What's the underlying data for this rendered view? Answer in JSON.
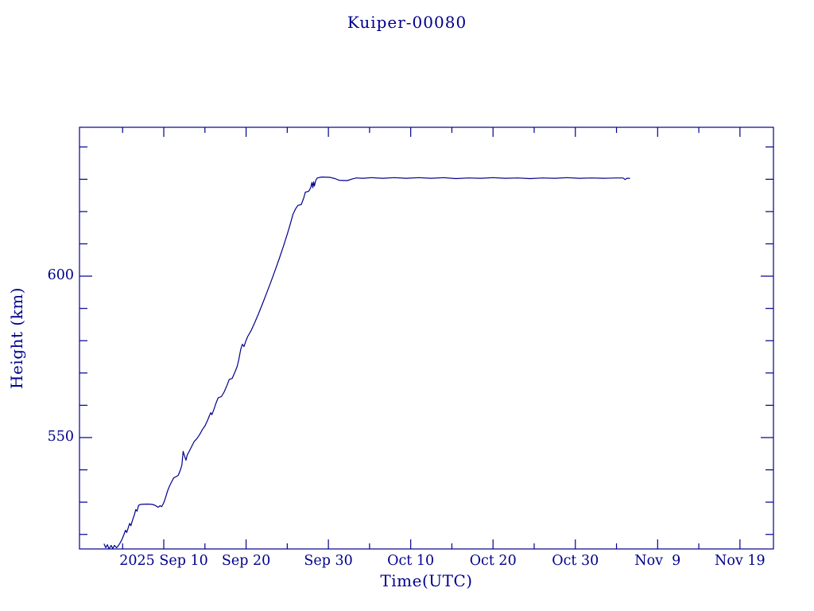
{
  "page": {
    "background_color": "#ffffff",
    "accent_color": "#00008B"
  },
  "chart_data": {
    "type": "line",
    "title": "Kuiper-00080",
    "xlabel": "Time(UTC)",
    "ylabel": "Height (km)",
    "grid": false,
    "legend": "none",
    "line_color": "#00008B",
    "frame_color": "#00008B",
    "x_unit": "days_since_2025-09-01_00:00_UTC",
    "xlim": [
      -1.24,
      83.07
    ],
    "ylim": [
      515.5,
      646.1
    ],
    "x_major_ticks": [
      {
        "t": 9,
        "label": "2025 Sep 10"
      },
      {
        "t": 19,
        "label": "Sep 20"
      },
      {
        "t": 29,
        "label": "Sep 30"
      },
      {
        "t": 39,
        "label": "Oct 10"
      },
      {
        "t": 49,
        "label": "Oct 20"
      },
      {
        "t": 59,
        "label": "Oct 30"
      },
      {
        "t": 69,
        "label": "Nov  9"
      },
      {
        "t": 79,
        "label": "Nov 19"
      }
    ],
    "x_minor_ticks": [
      4,
      14,
      24,
      34,
      44,
      54,
      64,
      74
    ],
    "y_major_ticks": [
      {
        "v": 550,
        "label": "550"
      },
      {
        "v": 600,
        "label": "600"
      }
    ],
    "y_minor_ticks": [
      520,
      530,
      540,
      560,
      570,
      580,
      590,
      610,
      620,
      630,
      640
    ],
    "series": [
      {
        "name": "Kuiper-00080 orbital height",
        "color": "#00008B",
        "points": [
          [
            1.75,
            517.0
          ],
          [
            1.95,
            515.9
          ],
          [
            2.15,
            516.8
          ],
          [
            2.35,
            515.5
          ],
          [
            2.6,
            516.6
          ],
          [
            2.8,
            515.6
          ],
          [
            3.0,
            516.6
          ],
          [
            3.25,
            515.9
          ],
          [
            3.45,
            516.4
          ],
          [
            3.7,
            517.4
          ],
          [
            3.95,
            518.6
          ],
          [
            4.15,
            519.9
          ],
          [
            4.35,
            521.3
          ],
          [
            4.5,
            520.6
          ],
          [
            4.7,
            522.2
          ],
          [
            4.85,
            523.4
          ],
          [
            5.0,
            522.7
          ],
          [
            5.2,
            524.4
          ],
          [
            5.45,
            526.3
          ],
          [
            5.6,
            527.7
          ],
          [
            5.75,
            527.2
          ],
          [
            5.95,
            529.0
          ],
          [
            6.2,
            529.3
          ],
          [
            7.0,
            529.4
          ],
          [
            7.6,
            529.3
          ],
          [
            7.95,
            529.0
          ],
          [
            8.3,
            528.4
          ],
          [
            8.55,
            528.9
          ],
          [
            8.75,
            528.6
          ],
          [
            9.0,
            529.8
          ],
          [
            9.2,
            531.3
          ],
          [
            9.45,
            533.4
          ],
          [
            9.7,
            535.0
          ],
          [
            9.95,
            536.3
          ],
          [
            10.2,
            537.5
          ],
          [
            10.5,
            537.9
          ],
          [
            10.75,
            538.3
          ],
          [
            11.0,
            539.8
          ],
          [
            11.2,
            541.5
          ],
          [
            11.35,
            545.7
          ],
          [
            11.55,
            544.1
          ],
          [
            11.7,
            543.0
          ],
          [
            11.85,
            544.6
          ],
          [
            12.0,
            545.3
          ],
          [
            12.3,
            546.8
          ],
          [
            12.7,
            548.8
          ],
          [
            13.0,
            549.6
          ],
          [
            13.35,
            550.9
          ],
          [
            13.7,
            552.5
          ],
          [
            14.0,
            553.6
          ],
          [
            14.3,
            555.2
          ],
          [
            14.55,
            556.8
          ],
          [
            14.7,
            557.7
          ],
          [
            14.85,
            557.1
          ],
          [
            15.1,
            558.8
          ],
          [
            15.35,
            560.7
          ],
          [
            15.6,
            562.3
          ],
          [
            16.0,
            562.7
          ],
          [
            16.35,
            564.2
          ],
          [
            16.7,
            566.3
          ],
          [
            16.95,
            568.0
          ],
          [
            17.3,
            568.3
          ],
          [
            17.6,
            570.0
          ],
          [
            17.9,
            571.9
          ],
          [
            18.1,
            574.0
          ],
          [
            18.35,
            577.3
          ],
          [
            18.55,
            578.9
          ],
          [
            18.75,
            578.2
          ],
          [
            18.95,
            579.8
          ],
          [
            19.2,
            581.3
          ],
          [
            19.6,
            583.1
          ],
          [
            20.0,
            585.3
          ],
          [
            20.5,
            588.3
          ],
          [
            21.0,
            591.5
          ],
          [
            21.5,
            594.8
          ],
          [
            22.0,
            598.1
          ],
          [
            22.5,
            601.6
          ],
          [
            23.0,
            605.2
          ],
          [
            23.5,
            609.0
          ],
          [
            24.0,
            613.0
          ],
          [
            24.35,
            616.0
          ],
          [
            24.7,
            619.2
          ],
          [
            25.0,
            620.8
          ],
          [
            25.3,
            621.9
          ],
          [
            25.7,
            622.2
          ],
          [
            26.0,
            624.2
          ],
          [
            26.2,
            626.0
          ],
          [
            26.6,
            626.3
          ],
          [
            26.85,
            627.4
          ],
          [
            27.0,
            629.0
          ],
          [
            27.1,
            627.4
          ],
          [
            27.2,
            629.2
          ],
          [
            27.3,
            627.9
          ],
          [
            27.45,
            629.6
          ],
          [
            27.65,
            630.4
          ],
          [
            28.2,
            630.7
          ],
          [
            29.2,
            630.6
          ],
          [
            29.8,
            630.2
          ],
          [
            30.3,
            629.7
          ],
          [
            31.3,
            629.6
          ],
          [
            31.9,
            630.1
          ],
          [
            32.4,
            630.4
          ],
          [
            33.2,
            630.3
          ],
          [
            34.2,
            630.5
          ],
          [
            35.6,
            630.3
          ],
          [
            37.0,
            630.5
          ],
          [
            38.4,
            630.3
          ],
          [
            40.0,
            630.5
          ],
          [
            41.5,
            630.3
          ],
          [
            43.0,
            630.5
          ],
          [
            44.5,
            630.2
          ],
          [
            46.0,
            630.4
          ],
          [
            47.5,
            630.3
          ],
          [
            49.0,
            630.5
          ],
          [
            50.5,
            630.3
          ],
          [
            52.0,
            630.4
          ],
          [
            53.5,
            630.2
          ],
          [
            55.0,
            630.4
          ],
          [
            56.5,
            630.3
          ],
          [
            58.0,
            630.5
          ],
          [
            59.5,
            630.3
          ],
          [
            61.0,
            630.4
          ],
          [
            62.5,
            630.3
          ],
          [
            64.0,
            630.4
          ],
          [
            64.8,
            630.4
          ],
          [
            65.05,
            629.9
          ],
          [
            65.25,
            630.3
          ],
          [
            65.6,
            630.3
          ]
        ]
      }
    ]
  }
}
